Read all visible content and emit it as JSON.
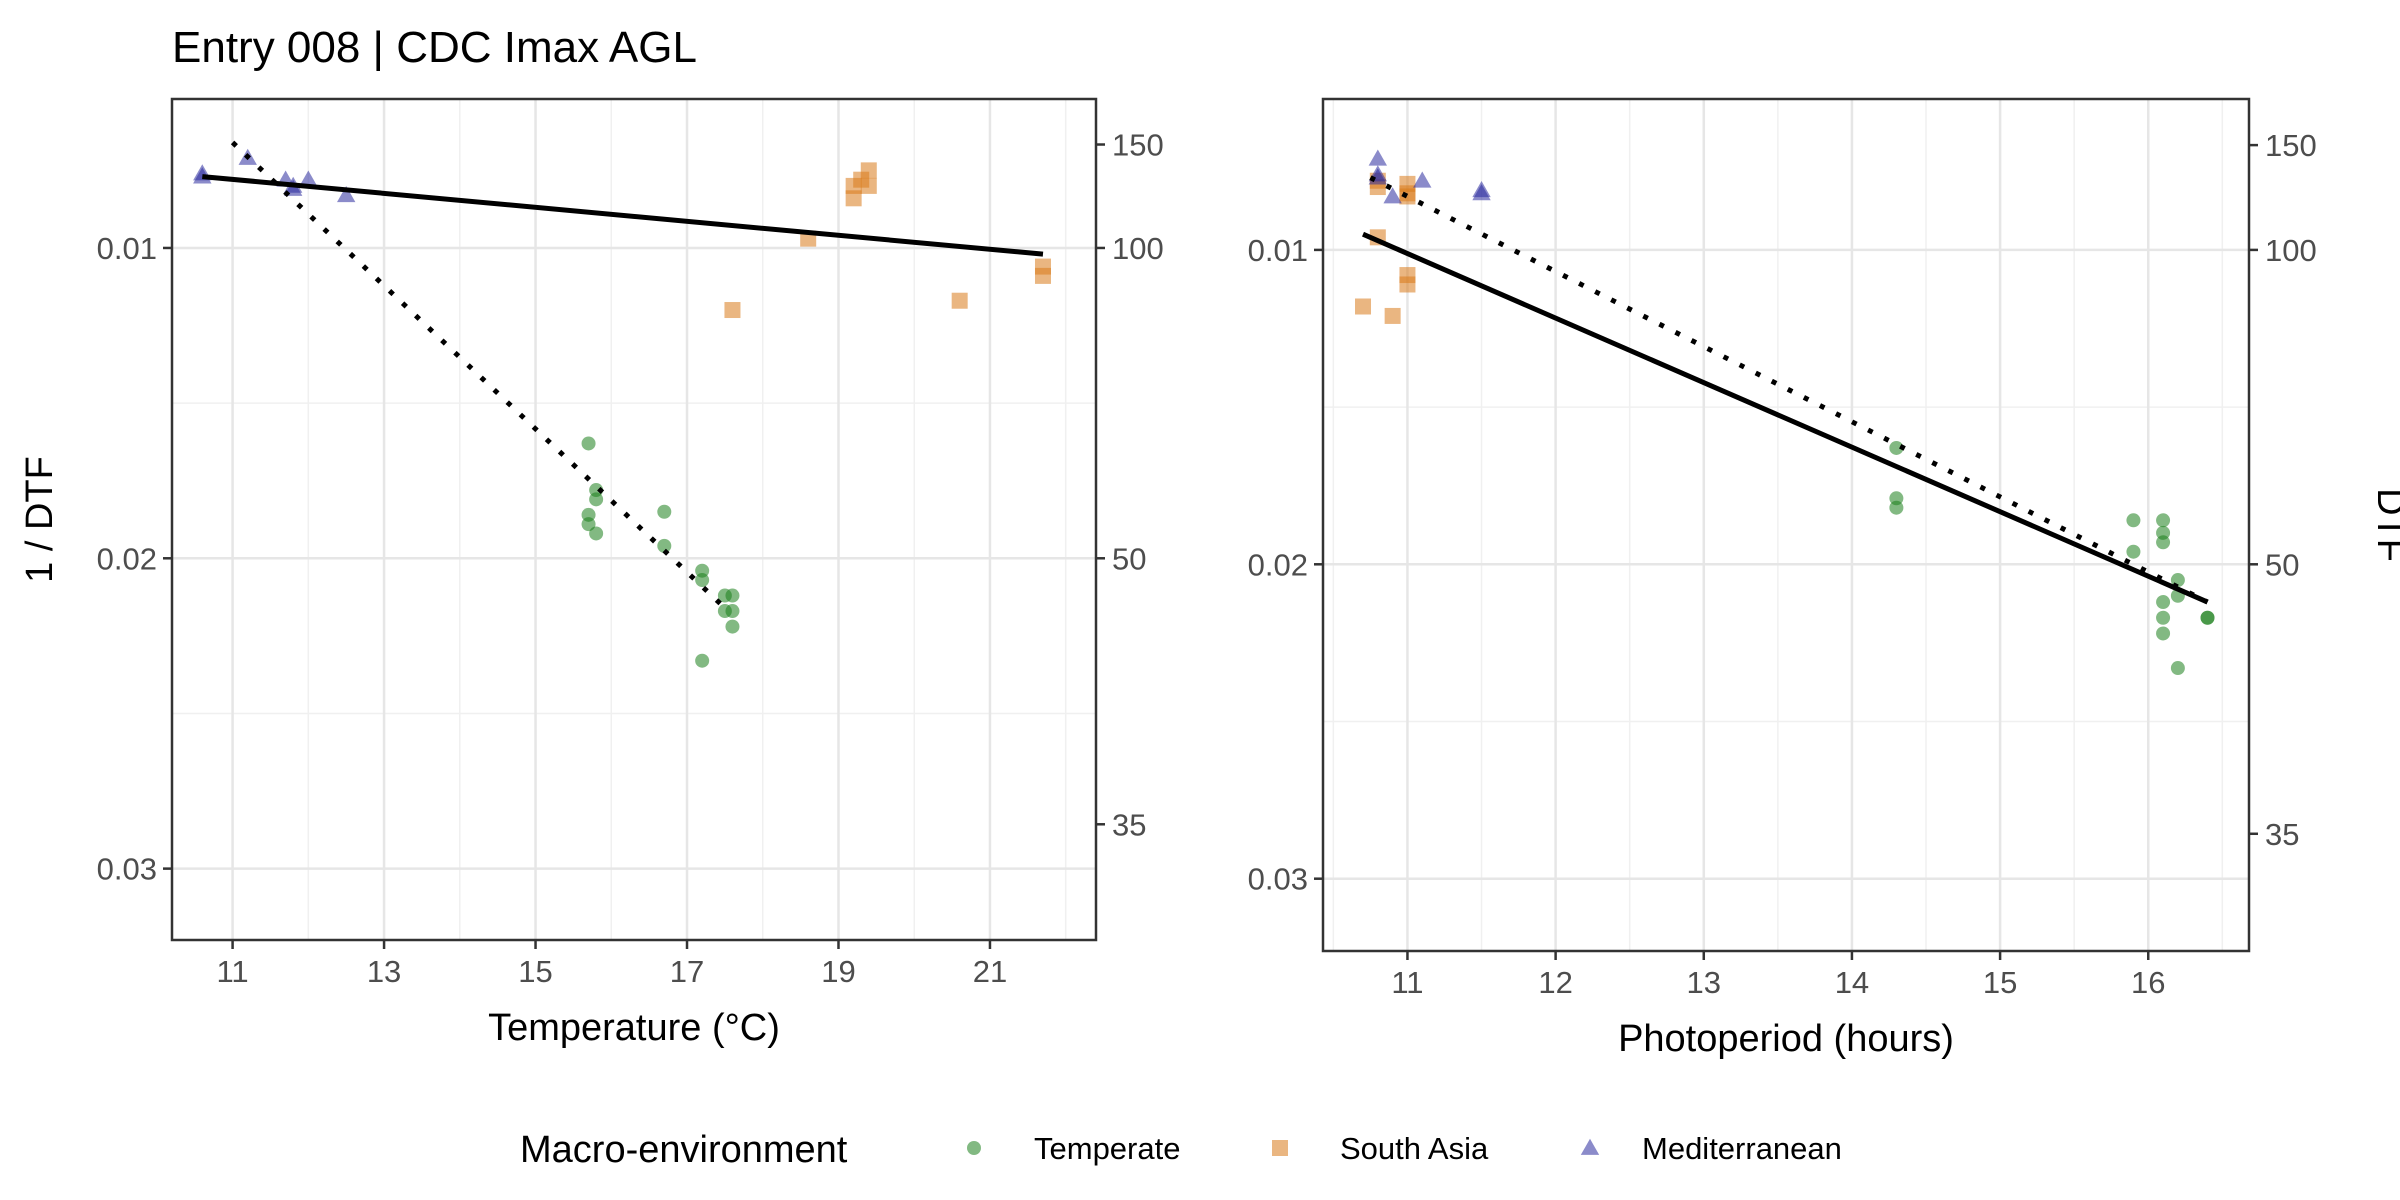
{
  "title": "Entry 008 | CDC Imax AGL",
  "legend": {
    "title": "Macro-environment",
    "items": [
      {
        "label": "Temperate",
        "shape": "circle",
        "color": "#1b7f1b"
      },
      {
        "label": "South Asia",
        "shape": "square",
        "color": "#d97a1a"
      },
      {
        "label": "Mediterranean",
        "shape": "triangle",
        "color": "#2b2b9e"
      }
    ]
  },
  "chart_data": [
    {
      "type": "scatter",
      "xlabel": "Temperature (°C)",
      "ylabel": "1 / DTF",
      "y2label": "",
      "x_ticks": [
        "11",
        "13",
        "15",
        "17",
        "19",
        "21"
      ],
      "x_tick_values": [
        11,
        13,
        15,
        17,
        19,
        21
      ],
      "y_ticks": [
        "0.01",
        "0.02",
        "0.03"
      ],
      "y_tick_values": [
        0.01,
        0.02,
        0.03
      ],
      "y2_ticks": [
        "150",
        "100",
        "50",
        "35"
      ],
      "y2_tick_values": [
        150,
        100,
        50,
        35
      ],
      "xlim": [
        10.2,
        22.4
      ],
      "ylim": [
        0.0052,
        0.0323
      ],
      "y_reversed": true,
      "grid": true,
      "series": [
        {
          "name": "Temperate",
          "x": [
            15.7,
            15.7,
            15.7,
            15.8,
            15.8,
            15.8,
            16.7,
            16.7,
            17.2,
            17.2,
            17.2,
            17.5,
            17.5,
            17.6,
            17.6,
            17.6
          ],
          "y": [
            0.0163,
            0.0186,
            0.0189,
            0.0192,
            0.0178,
            0.0181,
            0.0185,
            0.0196,
            0.0204,
            0.0207,
            0.0233,
            0.0212,
            0.0217,
            0.0212,
            0.0217,
            0.0222
          ]
        },
        {
          "name": "South Asia",
          "x": [
            18.6,
            19.2,
            19.2,
            19.3,
            19.4,
            19.4,
            17.6,
            20.6,
            21.7,
            21.7
          ],
          "y": [
            0.0097,
            0.0084,
            0.008,
            0.0078,
            0.008,
            0.0075,
            0.012,
            0.0117,
            0.0106,
            0.0109
          ]
        },
        {
          "name": "Mediterranean",
          "x": [
            10.6,
            10.6,
            11.2,
            11.7,
            11.8,
            11.8,
            12.0,
            12.5
          ],
          "y": [
            0.0076,
            0.0077,
            0.0071,
            0.0078,
            0.008,
            0.0081,
            0.0078,
            0.0083
          ]
        }
      ],
      "fits": [
        {
          "style": "solid",
          "x": [
            10.6,
            21.7
          ],
          "y": [
            0.0077,
            0.0102
          ]
        },
        {
          "style": "dotted",
          "x": [
            11.0,
            17.5
          ],
          "y": [
            0.0066,
            0.0216
          ]
        }
      ]
    },
    {
      "type": "scatter",
      "xlabel": "Photoperiod (hours)",
      "ylabel": "",
      "y2label": "DTF",
      "x_ticks": [
        "11",
        "12",
        "13",
        "14",
        "15",
        "16"
      ],
      "x_tick_values": [
        11,
        12,
        13,
        14,
        15,
        16
      ],
      "y_ticks": [
        "0.01",
        "0.02",
        "0.03"
      ],
      "y_tick_values": [
        0.01,
        0.02,
        0.03
      ],
      "y2_ticks": [
        "150",
        "100",
        "50",
        "35"
      ],
      "y2_tick_values": [
        150,
        100,
        50,
        35
      ],
      "xlim": [
        10.43,
        16.68
      ],
      "ylim": [
        0.0052,
        0.0323
      ],
      "y_reversed": true,
      "grid": true,
      "series": [
        {
          "name": "Temperate",
          "x": [
            14.3,
            14.3,
            14.3,
            15.9,
            15.9,
            16.1,
            16.1,
            16.1,
            16.1,
            16.1,
            16.1,
            16.2,
            16.2,
            16.2,
            16.4,
            16.4
          ],
          "y": [
            0.0163,
            0.0179,
            0.0182,
            0.0186,
            0.0196,
            0.0186,
            0.019,
            0.0193,
            0.0212,
            0.0217,
            0.0222,
            0.0205,
            0.021,
            0.0233,
            0.0217,
            0.0217
          ]
        },
        {
          "name": "South Asia",
          "x": [
            10.7,
            10.8,
            10.8,
            10.8,
            10.9,
            11.0,
            11.0,
            11.0,
            11.0,
            11.0
          ],
          "y": [
            0.0118,
            0.0096,
            0.0078,
            0.008,
            0.0121,
            0.0079,
            0.0083,
            0.0108,
            0.0111,
            0.0082
          ]
        },
        {
          "name": "Mediterranean",
          "x": [
            10.8,
            10.8,
            10.8,
            10.9,
            11.1,
            11.5,
            11.5
          ],
          "y": [
            0.0071,
            0.0076,
            0.0077,
            0.0083,
            0.0078,
            0.0081,
            0.0082
          ]
        }
      ],
      "fits": [
        {
          "style": "solid",
          "x": [
            10.7,
            16.4
          ],
          "y": [
            0.0095,
            0.0212
          ]
        },
        {
          "style": "dotted",
          "x": [
            10.75,
            16.4
          ],
          "y": [
            0.0077,
            0.0212
          ]
        }
      ]
    }
  ]
}
